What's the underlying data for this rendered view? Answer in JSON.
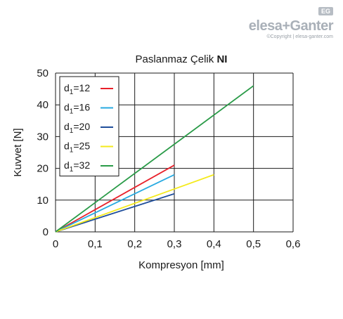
{
  "brand": {
    "badge": "EG",
    "logo": "elesa+Ganter",
    "copyright": "©Copyright | elesa-ganter.com"
  },
  "chart_data": {
    "type": "line",
    "title": "Paslanmaz Çelik",
    "title_suffix": "NI",
    "xlabel": "Kompresyon [mm]",
    "ylabel": "Kuvvet [N]",
    "xlim": [
      0,
      0.6
    ],
    "ylim": [
      0,
      50
    ],
    "x_ticks": [
      "0",
      "0,1",
      "0,2",
      "0,3",
      "0,4",
      "0,5",
      "0,6"
    ],
    "y_ticks": [
      "0",
      "10",
      "20",
      "30",
      "40",
      "50"
    ],
    "grid": true,
    "legend_position": "top-left",
    "series": [
      {
        "name": "d1=12",
        "label_main": "d",
        "label_sub": "1",
        "label_rest": "=12",
        "color": "#e8202a",
        "x": [
          0,
          0.3
        ],
        "y": [
          0,
          21
        ]
      },
      {
        "name": "d1=16",
        "label_main": "d",
        "label_sub": "1",
        "label_rest": "=16",
        "color": "#27aae1",
        "x": [
          0,
          0.3
        ],
        "y": [
          0,
          18
        ]
      },
      {
        "name": "d1=20",
        "label_main": "d",
        "label_sub": "1",
        "label_rest": "=20",
        "color": "#1f4e9b",
        "x": [
          0,
          0.3
        ],
        "y": [
          0,
          12
        ]
      },
      {
        "name": "d1=25",
        "label_main": "d",
        "label_sub": "1",
        "label_rest": "=25",
        "color": "#f4ea1c",
        "x": [
          0,
          0.4
        ],
        "y": [
          0,
          18
        ]
      },
      {
        "name": "d1=32",
        "label_main": "d",
        "label_sub": "1",
        "label_rest": "=32",
        "color": "#2a9b48",
        "x": [
          0,
          0.5
        ],
        "y": [
          0,
          46
        ]
      }
    ]
  }
}
